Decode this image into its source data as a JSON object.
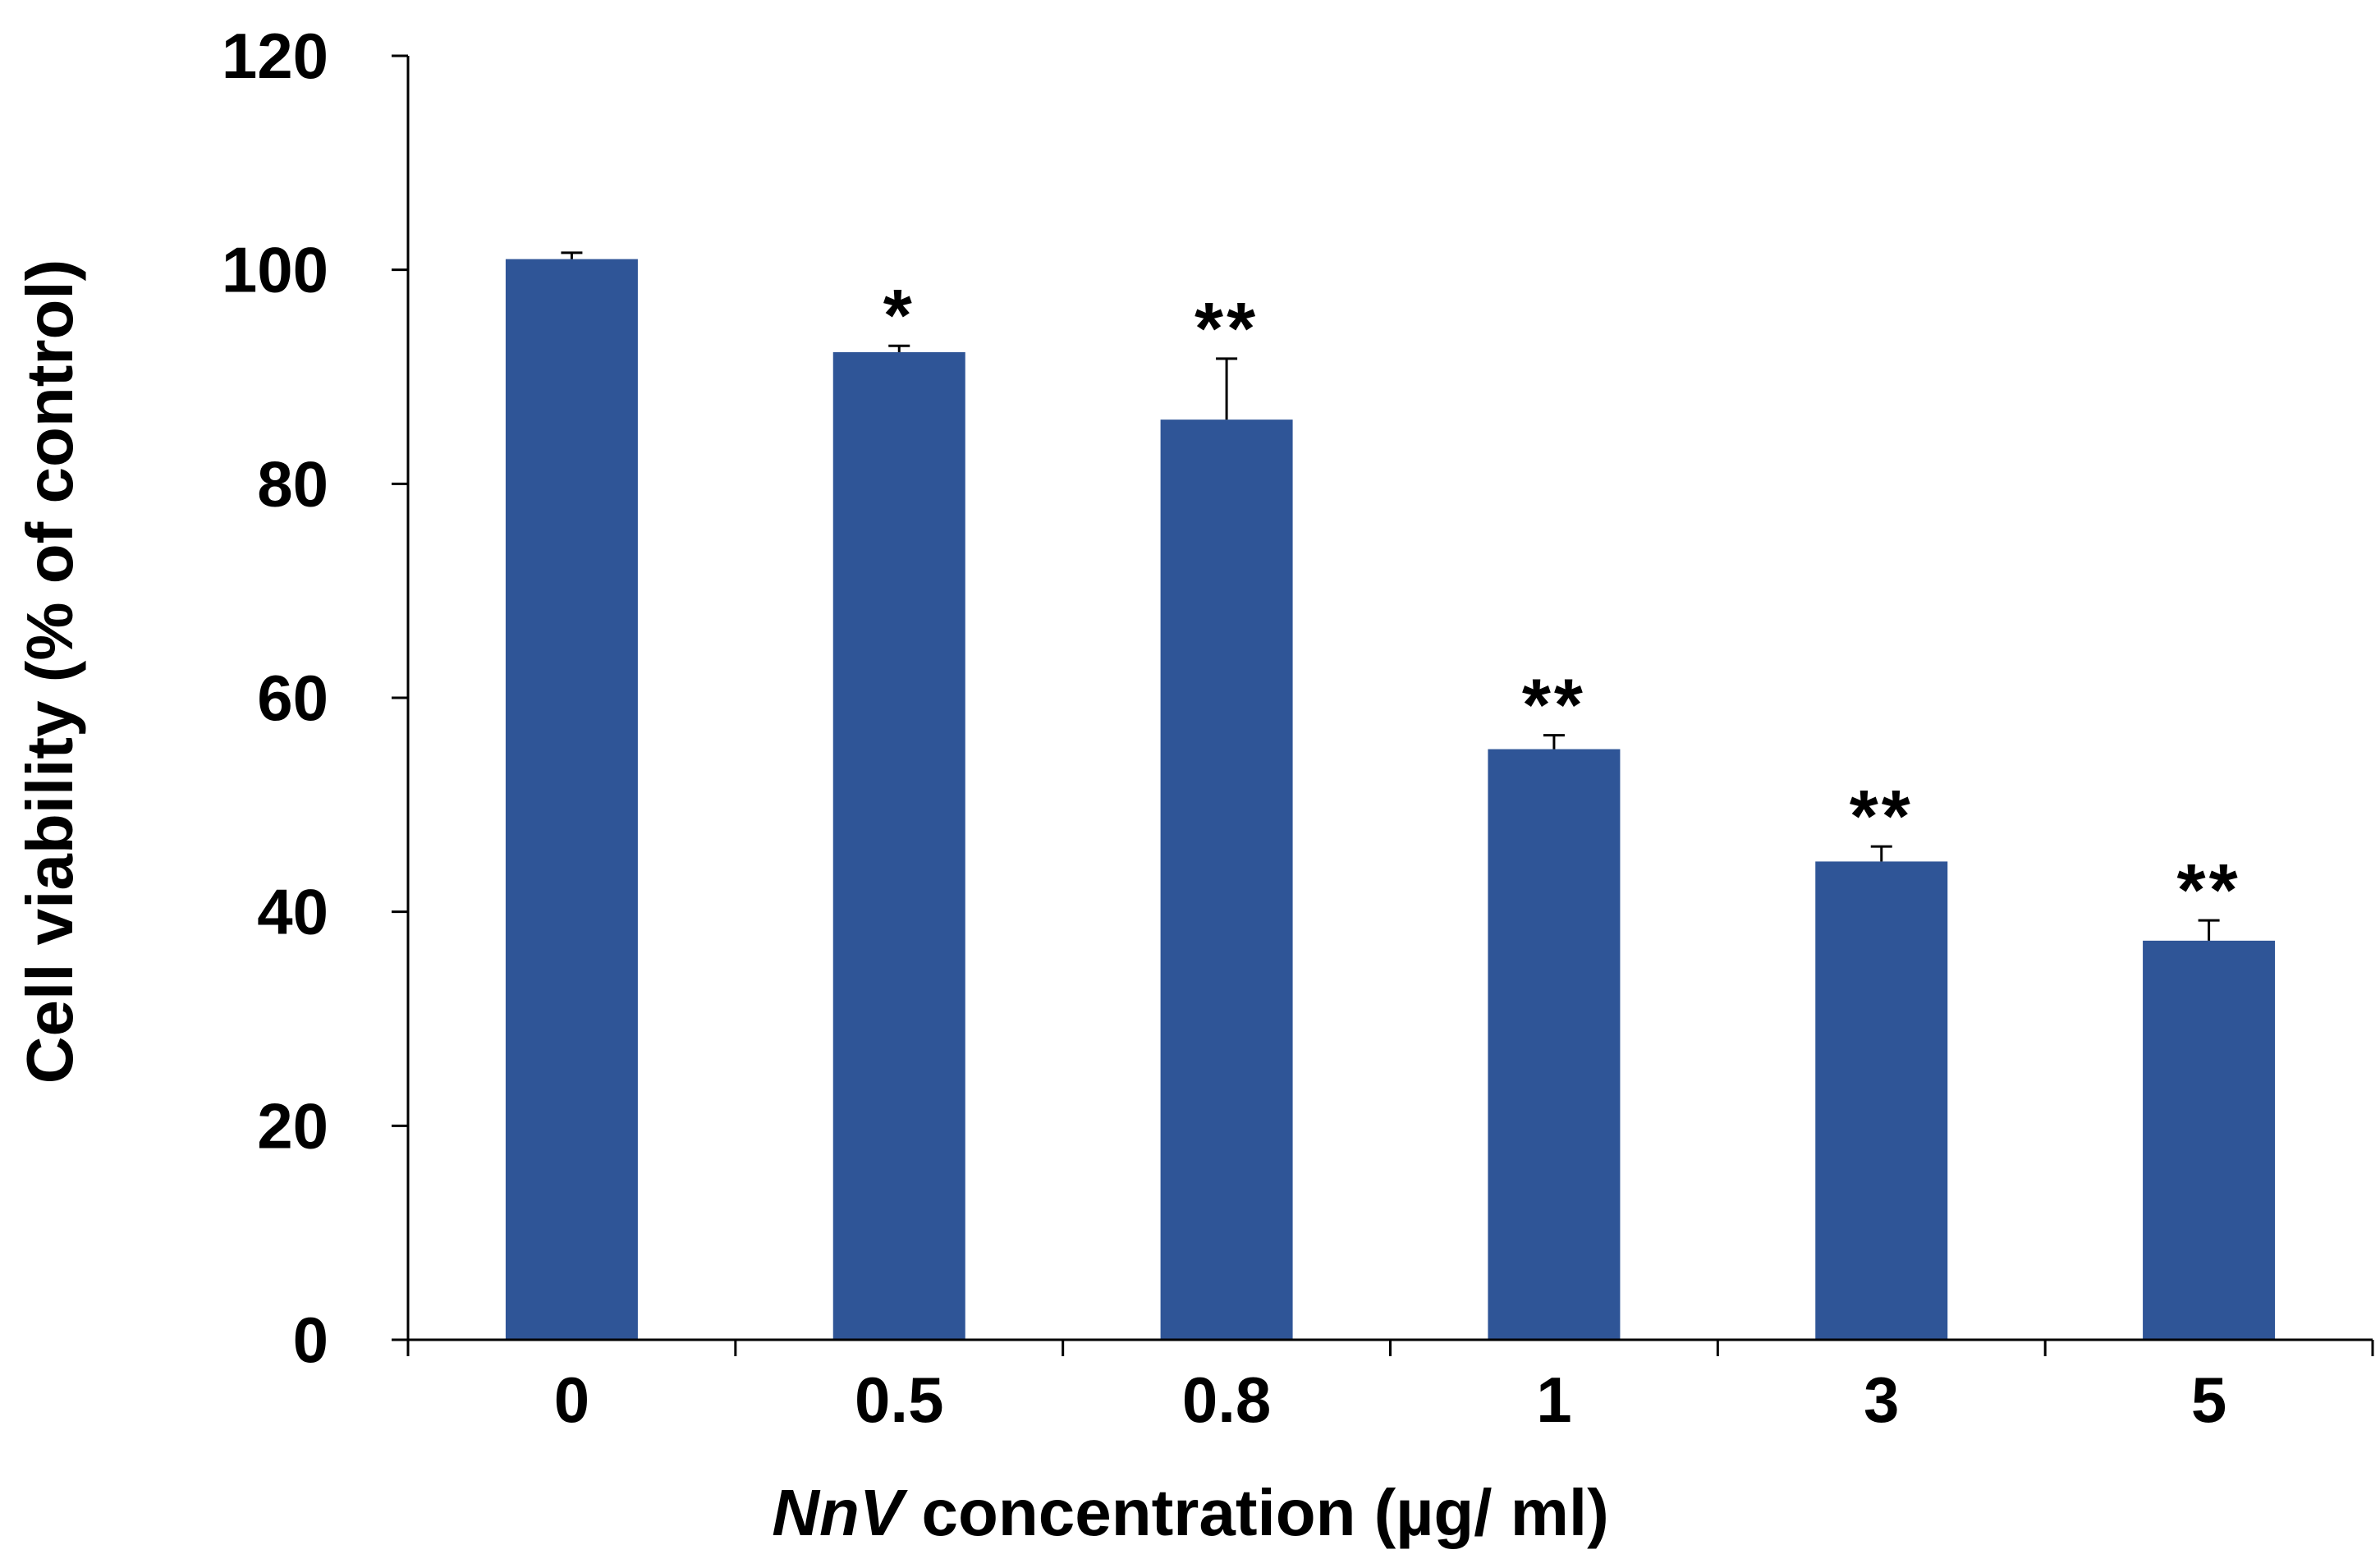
{
  "chart_data": {
    "type": "bar",
    "title": "",
    "categories": [
      "0",
      "0.5",
      "0.8",
      "1",
      "3",
      "5"
    ],
    "values": [
      101,
      92.3,
      86,
      55.2,
      44.7,
      37.3
    ],
    "error_plus": [
      0.6,
      0.6,
      5.7,
      1.3,
      1.4,
      1.9
    ],
    "significance": [
      "",
      "*",
      "**",
      "**",
      "**",
      "**"
    ],
    "xlabel_italic": "NnV",
    "xlabel_rest": " concentration (µg/ ml)",
    "ylabel": "Cell viability (% of control)",
    "ylim": [
      0,
      120
    ],
    "yticks": [
      0,
      20,
      40,
      60,
      80,
      100,
      120
    ],
    "bar_color": "#2F5597",
    "axis_color": "#000000",
    "grid": false
  }
}
